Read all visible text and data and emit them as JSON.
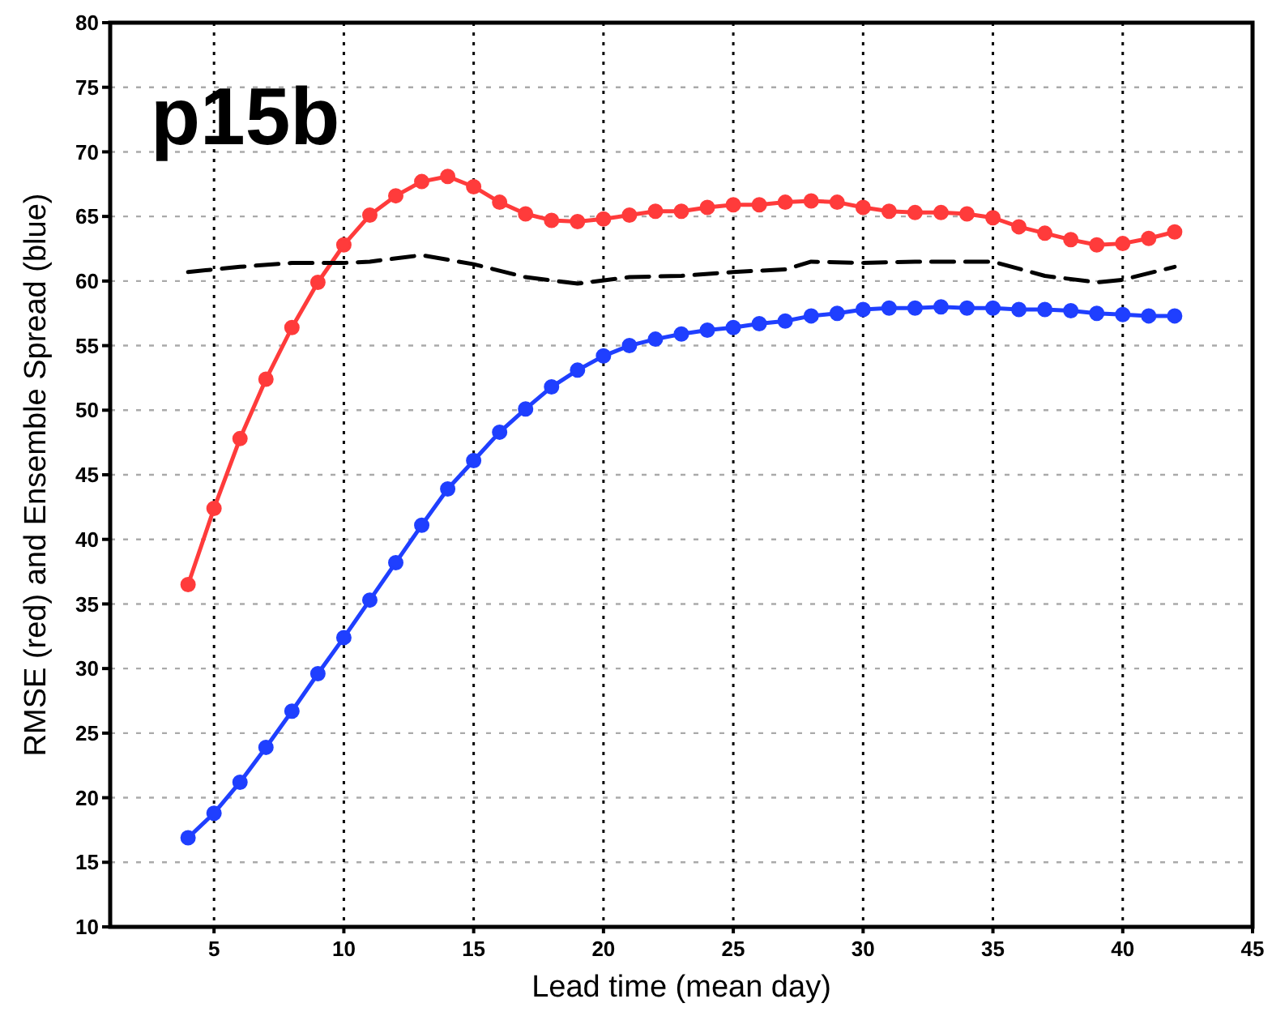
{
  "chart_data": {
    "type": "line",
    "xlabel": "Lead time (mean day)",
    "ylabel": "RMSE (red) and Ensemble Spread (blue)",
    "annotations": [
      "p15b"
    ],
    "xlim": [
      1,
      45
    ],
    "xticks": [
      5,
      10,
      15,
      20,
      25,
      30,
      35,
      40,
      45
    ],
    "ylim": [
      10,
      80
    ],
    "yticks": [
      10,
      15,
      20,
      25,
      30,
      35,
      40,
      45,
      50,
      55,
      60,
      65,
      70,
      75,
      80
    ],
    "grid": true,
    "series": [
      {
        "color": "#ff3b3b",
        "marker": "circle",
        "line_style": "solid",
        "x": [
          4,
          5,
          6,
          7,
          8,
          9,
          10,
          11,
          12,
          13,
          14,
          15,
          16,
          17,
          18,
          19,
          20,
          21,
          22,
          23,
          24,
          25,
          26,
          27,
          28,
          29,
          30,
          31,
          32,
          33,
          34,
          35,
          36,
          37,
          38,
          39,
          40,
          41,
          42
        ],
        "values": [
          36.5,
          42.4,
          47.8,
          52.4,
          56.4,
          59.9,
          62.8,
          65.1,
          66.6,
          67.7,
          68.1,
          67.3,
          66.1,
          65.2,
          64.7,
          64.6,
          64.8,
          65.1,
          65.4,
          65.4,
          65.7,
          65.9,
          65.9,
          66.1,
          66.2,
          66.1,
          65.7,
          65.4,
          65.3,
          65.3,
          65.2,
          64.9,
          64.2,
          63.7,
          63.2,
          62.8,
          62.9,
          63.3,
          63.8
        ]
      },
      {
        "color": "#1f3fff",
        "marker": "circle",
        "line_style": "solid",
        "x": [
          4,
          5,
          6,
          7,
          8,
          9,
          10,
          11,
          12,
          13,
          14,
          15,
          16,
          17,
          18,
          19,
          20,
          21,
          22,
          23,
          24,
          25,
          26,
          27,
          28,
          29,
          30,
          31,
          32,
          33,
          34,
          35,
          36,
          37,
          38,
          39,
          40,
          41,
          42
        ],
        "values": [
          16.9,
          18.8,
          21.2,
          23.9,
          26.7,
          29.6,
          32.4,
          35.3,
          38.2,
          41.1,
          43.9,
          46.1,
          48.3,
          50.1,
          51.8,
          53.1,
          54.2,
          55.0,
          55.5,
          55.9,
          56.2,
          56.4,
          56.7,
          56.9,
          57.3,
          57.5,
          57.8,
          57.9,
          57.9,
          58.0,
          57.9,
          57.9,
          57.8,
          57.8,
          57.7,
          57.5,
          57.4,
          57.3,
          57.3
        ]
      },
      {
        "color": "#000000",
        "marker": "none",
        "line_style": "dashed",
        "x": [
          4,
          6,
          8,
          10,
          11,
          13,
          15,
          17,
          19,
          21,
          23,
          25,
          27,
          28,
          30,
          32,
          35,
          37,
          39,
          40,
          42
        ],
        "values": [
          60.7,
          61.1,
          61.4,
          61.4,
          61.5,
          62.0,
          61.3,
          60.3,
          59.8,
          60.3,
          60.4,
          60.7,
          60.9,
          61.5,
          61.4,
          61.5,
          61.5,
          60.4,
          59.9,
          60.1,
          61.1
        ]
      }
    ]
  }
}
